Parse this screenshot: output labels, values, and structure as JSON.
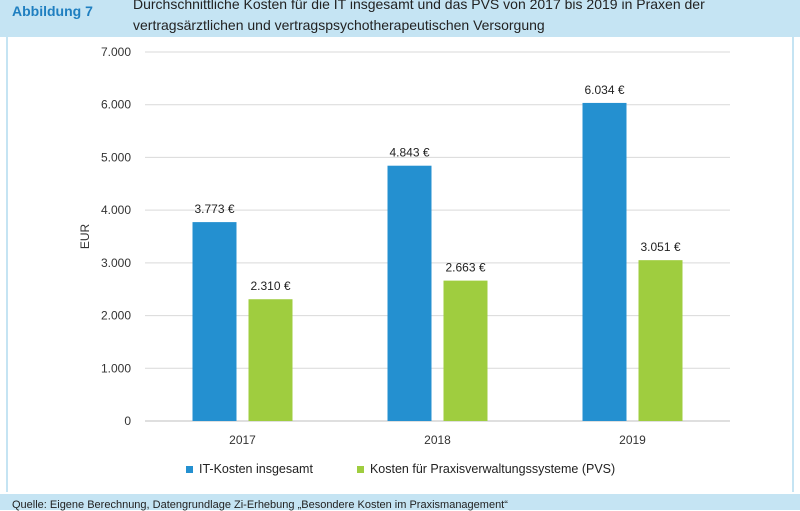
{
  "header": {
    "label": "Abbildung 7",
    "title": "Durchschnittliche Kosten für die IT insgesamt und das PVS von 2017 bis 2019 in Praxen der vertragsärztlichen und vertragspsychotherapeutischen Versorgung"
  },
  "footer": {
    "source": "Quelle: Eigene Berechnung, Datengrundlage Zi-Erhebung „Besondere Kosten im Praxismanagement“"
  },
  "colors": {
    "it": "#2490d0",
    "pvs": "#9fcd3f",
    "grid": "#d9d9d9",
    "band": "#c5e4f3"
  },
  "chart_data": {
    "type": "bar",
    "categories": [
      "2017",
      "2018",
      "2019"
    ],
    "series": [
      {
        "name": "IT-Kosten insgesamt",
        "values": [
          3773,
          4843,
          6034
        ],
        "labels": [
          "3.773 €",
          "4.843 €",
          "6.034 €"
        ]
      },
      {
        "name": "Kosten für Praxisverwaltungssysteme (PVS)",
        "values": [
          2310,
          2663,
          3051
        ],
        "labels": [
          "2.310 €",
          "2.663 €",
          "3.051 €"
        ]
      }
    ],
    "ylabel": "EUR",
    "ylim": [
      0,
      7000
    ],
    "yticks": [
      0,
      1000,
      2000,
      3000,
      4000,
      5000,
      6000,
      7000
    ],
    "ytick_labels": [
      "0",
      "1.000",
      "2.000",
      "3.000",
      "4.000",
      "5.000",
      "6.000",
      "7.000"
    ],
    "grid": true,
    "legend_position": "bottom"
  }
}
